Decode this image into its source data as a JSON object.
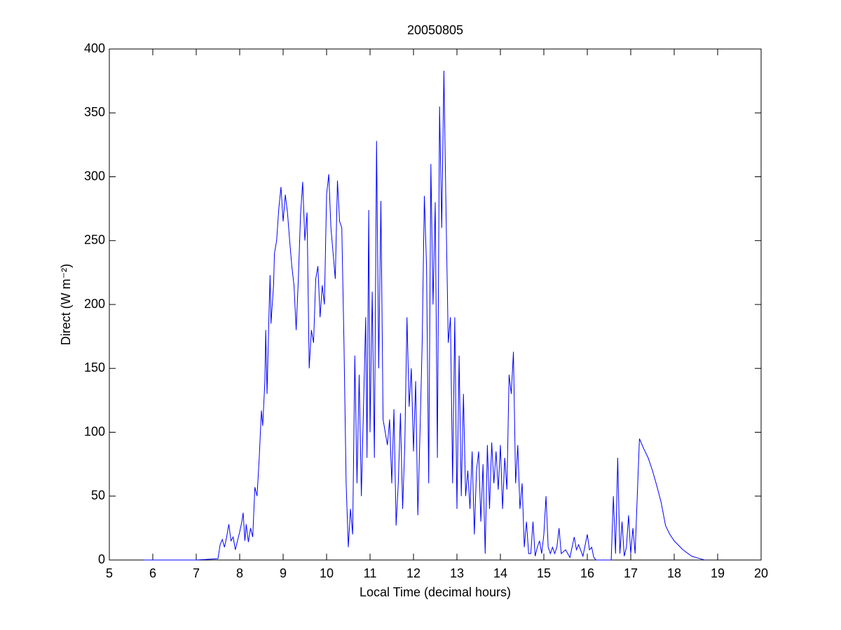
{
  "chart_data": {
    "type": "line",
    "title": "20050805",
    "xlabel": "Local Time (decimal hours)",
    "ylabel": "Direct (W m⁻²)",
    "x": [
      5.8,
      7.0,
      7.5,
      7.55,
      7.6,
      7.65,
      7.7,
      7.75,
      7.8,
      7.85,
      7.9,
      8.0,
      8.05,
      8.08,
      8.12,
      8.15,
      8.2,
      8.25,
      8.3,
      8.35,
      8.4,
      8.45,
      8.5,
      8.53,
      8.58,
      8.6,
      8.63,
      8.68,
      8.7,
      8.72,
      8.78,
      8.8,
      8.85,
      8.9,
      8.95,
      9.0,
      9.05,
      9.1,
      9.15,
      9.2,
      9.25,
      9.3,
      9.35,
      9.4,
      9.45,
      9.5,
      9.55,
      9.6,
      9.65,
      9.7,
      9.75,
      9.8,
      9.85,
      9.9,
      9.95,
      10.0,
      10.05,
      10.1,
      10.15,
      10.2,
      10.25,
      10.3,
      10.35,
      10.4,
      10.45,
      10.5,
      10.55,
      10.6,
      10.65,
      10.7,
      10.75,
      10.8,
      10.85,
      10.9,
      10.93,
      10.97,
      11.0,
      11.05,
      11.1,
      11.15,
      11.2,
      11.25,
      11.3,
      11.35,
      11.4,
      11.45,
      11.5,
      11.55,
      11.6,
      11.65,
      11.7,
      11.75,
      11.8,
      11.85,
      11.9,
      11.95,
      12.0,
      12.05,
      12.1,
      12.15,
      12.2,
      12.25,
      12.3,
      12.35,
      12.4,
      12.45,
      12.5,
      12.55,
      12.6,
      12.65,
      12.7,
      12.75,
      12.8,
      12.85,
      12.9,
      12.95,
      13.0,
      13.05,
      13.1,
      13.15,
      13.2,
      13.25,
      13.3,
      13.35,
      13.4,
      13.45,
      13.5,
      13.55,
      13.6,
      13.65,
      13.7,
      13.75,
      13.8,
      13.85,
      13.9,
      13.95,
      14.0,
      14.05,
      14.1,
      14.15,
      14.2,
      14.25,
      14.3,
      14.35,
      14.4,
      14.45,
      14.5,
      14.55,
      14.6,
      14.65,
      14.7,
      14.75,
      14.8,
      14.85,
      14.9,
      14.95,
      15.0,
      15.05,
      15.1,
      15.15,
      15.2,
      15.25,
      15.3,
      15.35,
      15.4,
      15.5,
      15.6,
      15.7,
      15.75,
      15.8,
      15.9,
      16.0,
      16.05,
      16.1,
      16.15,
      16.2,
      16.55,
      16.6,
      16.65,
      16.7,
      16.75,
      16.8,
      16.85,
      16.9,
      16.95,
      17.0,
      17.05,
      17.1,
      17.2,
      17.3,
      17.4,
      17.5,
      17.6,
      17.7,
      17.8,
      17.9,
      18.0,
      18.2,
      18.4,
      18.6,
      18.7
    ],
    "series": [
      {
        "color": "#0000ff",
        "values": [
          0,
          0,
          1,
          12,
          16,
          10,
          18,
          28,
          15,
          18,
          8,
          22,
          30,
          37,
          15,
          28,
          14,
          25,
          18,
          57,
          50,
          80,
          117,
          105,
          140,
          180,
          130,
          200,
          223,
          185,
          215,
          240,
          250,
          275,
          292,
          265,
          286,
          272,
          250,
          230,
          215,
          180,
          220,
          270,
          296,
          250,
          272,
          150,
          180,
          170,
          220,
          230,
          190,
          215,
          200,
          286,
          302,
          260,
          240,
          220,
          297,
          265,
          260,
          170,
          60,
          10,
          40,
          20,
          160,
          60,
          145,
          50,
          120,
          190,
          80,
          274,
          100,
          210,
          80,
          328,
          150,
          281,
          110,
          100,
          90,
          110,
          60,
          118,
          27,
          60,
          115,
          40,
          90,
          190,
          120,
          150,
          85,
          140,
          35,
          100,
          170,
          285,
          230,
          60,
          310,
          200,
          280,
          80,
          355,
          260,
          383,
          270,
          170,
          190,
          60,
          190,
          40,
          160,
          50,
          130,
          50,
          70,
          40,
          85,
          20,
          70,
          85,
          30,
          75,
          5,
          90,
          40,
          92,
          60,
          85,
          55,
          90,
          40,
          80,
          55,
          145,
          130,
          163,
          60,
          90,
          40,
          60,
          10,
          30,
          5,
          5,
          30,
          3,
          10,
          15,
          5,
          20,
          50,
          10,
          5,
          10,
          5,
          10,
          25,
          5,
          8,
          2,
          18,
          8,
          12,
          3,
          20,
          8,
          10,
          2,
          0,
          0,
          50,
          5,
          80,
          5,
          30,
          3,
          10,
          35,
          5,
          25,
          5,
          95,
          87,
          80,
          70,
          58,
          45,
          27,
          20,
          15,
          8,
          3,
          1,
          0
        ]
      }
    ],
    "xlim": [
      5,
      20
    ],
    "xticks": [
      5,
      6,
      7,
      8,
      9,
      10,
      11,
      12,
      13,
      14,
      15,
      16,
      17,
      18,
      19,
      20
    ],
    "ylim": [
      0,
      400
    ],
    "yticks": [
      0,
      50,
      100,
      150,
      200,
      250,
      300,
      350,
      400
    ]
  }
}
